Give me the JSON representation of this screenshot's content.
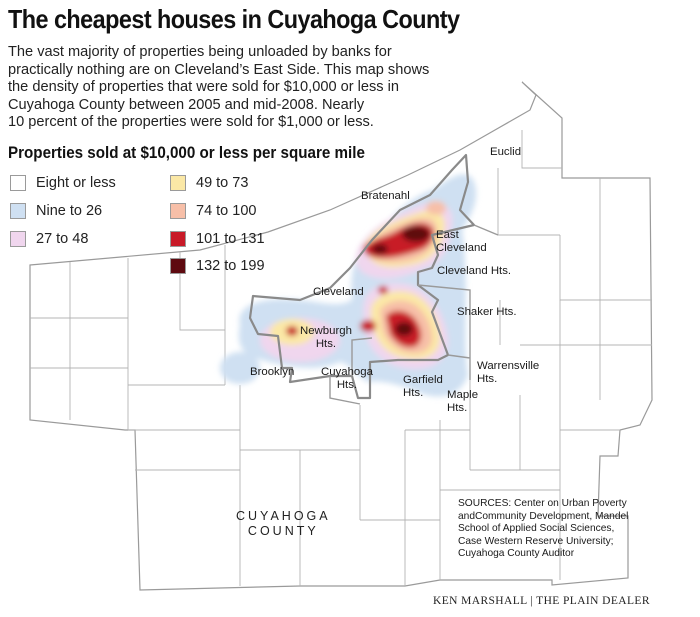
{
  "headline": "The cheapest houses in Cuyahoga County",
  "intro_lines": [
    "The vast majority of properties being unloaded by banks for",
    "practically nothing are on Cleveland’s East Side. This map shows",
    "the density of properties that were sold for $10,000 or less in",
    "Cuyahoga County between 2005 and mid-2008. Nearly",
    "10 percent of the properties were sold for $1,000 or less."
  ],
  "legend": {
    "title": "Properties sold at $10,000 or less per square mile",
    "items": [
      {
        "label": "Eight or less",
        "color": "#ffffff"
      },
      {
        "label": "Nine to 26",
        "color": "#cfe0f2"
      },
      {
        "label": "27 to 48",
        "color": "#f0d6ee"
      },
      {
        "label": "49 to 73",
        "color": "#fbe8a6"
      },
      {
        "label": "74 to 100",
        "color": "#f7bfa8"
      },
      {
        "label": "101 to 131",
        "color": "#c81a28"
      },
      {
        "label": "132 to 199",
        "color": "#5e0a10"
      }
    ]
  },
  "places": {
    "euclid": "Euclid",
    "bratenahl": "Bratenahl",
    "east_cleveland": "East\nCleveland",
    "cleveland_hts": "Cleveland Hts.",
    "cleveland": "Cleveland",
    "shaker_hts": "Shaker Hts.",
    "newburgh_hts": "Newburgh\nHts.",
    "brooklyn": "Brooklyn",
    "cuyahoga_hts": "Cuyahoga\nHts.",
    "garfield_hts": "Garfield\nHts.",
    "warrensville_hts": "Warrensville\nHts.",
    "maple_hts": "Maple\nHts."
  },
  "county_label": "CUYAHOGA\nCOUNTY",
  "sources_lines": [
    "SOURCES: Center on Urban Poverty",
    "andCommunity Development, Mandel",
    "School of Applied Social Sciences,",
    "Case Western Reserve University;",
    "Cuyahoga County Auditor"
  ],
  "credit": "KEN MARSHALL | THE PLAIN DEALER"
}
